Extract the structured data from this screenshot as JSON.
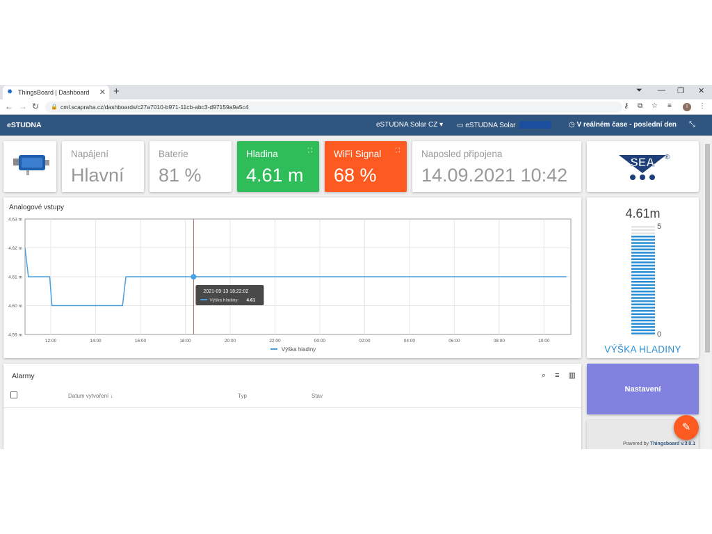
{
  "browser": {
    "tab_title": "ThingsBoard | Dashboard",
    "url": "cml.scapraha.cz/dashboards/c27a7010-b971-11cb-abc3-d97159a9a5c4"
  },
  "toolbar": {
    "brand": "eSTUDNA",
    "dashboard_select": "eSTUDNA Solar CZ",
    "device_label": "eSTUDNA Solar",
    "timewindow": "V reálném čase - poslední den"
  },
  "cards": {
    "napajeni": {
      "title": "Napájení",
      "value": "Hlavní"
    },
    "baterie": {
      "title": "Baterie",
      "value": "81 %"
    },
    "hladina": {
      "title": "Hladina",
      "value": "4.61 m"
    },
    "wifi": {
      "title": "WiFi Signal",
      "value": "68 %"
    },
    "posledni": {
      "title": "Naposled připojena",
      "value": "14.09.2021 10:42"
    }
  },
  "logo": {
    "text": "SEA",
    "mark": "®"
  },
  "chart": {
    "title": "Analogové vstupy",
    "tooltip_time": "2021-09-13 18:22:02",
    "tooltip_series": "Výška hladiny:",
    "tooltip_value": "4.61"
  },
  "chart_data": {
    "type": "line",
    "title": "Analogové vstupy",
    "xlabel": "",
    "ylabel": "",
    "x_ticks": [
      "12:00",
      "14:00",
      "16:00",
      "18:00",
      "20:00",
      "22:00",
      "00:00",
      "02:00",
      "04:00",
      "06:00",
      "08:00",
      "10:00"
    ],
    "y_ticks": [
      "4.59 m",
      "4.60 m",
      "4.61 m",
      "4.62 m",
      "4.63 m"
    ],
    "ylim": [
      4.59,
      4.63
    ],
    "xlim_hours": [
      10.85,
      35.2
    ],
    "grid": true,
    "legend_position": "bottom",
    "series": [
      {
        "name": "Výška hladiny",
        "color": "#4a9fe0",
        "x_hours": [
          10.85,
          11.0,
          11.05,
          11.95,
          12.05,
          15.2,
          15.35,
          35.0
        ],
        "values": [
          4.62,
          4.61,
          4.61,
          4.61,
          4.6,
          4.6,
          4.61,
          4.61
        ]
      }
    ],
    "highlight": {
      "x_hours": 18.37,
      "value": 4.61
    }
  },
  "alarms": {
    "title": "Alarmy",
    "col_created": "Datum vytvoření",
    "col_type": "Typ",
    "col_status": "Stav"
  },
  "gauge": {
    "value_text": "4.61m",
    "value": 4.61,
    "min": 0,
    "max": 5,
    "max_label": "5",
    "min_label": "0",
    "label": "VÝŠKA HLADINY",
    "color": "#2a8fd6"
  },
  "settings": {
    "label": "Nastavení",
    "color": "#8181df"
  },
  "footer": {
    "powered_prefix": "Powered by",
    "powered_name": "Thingsboard v.3.0.1"
  }
}
